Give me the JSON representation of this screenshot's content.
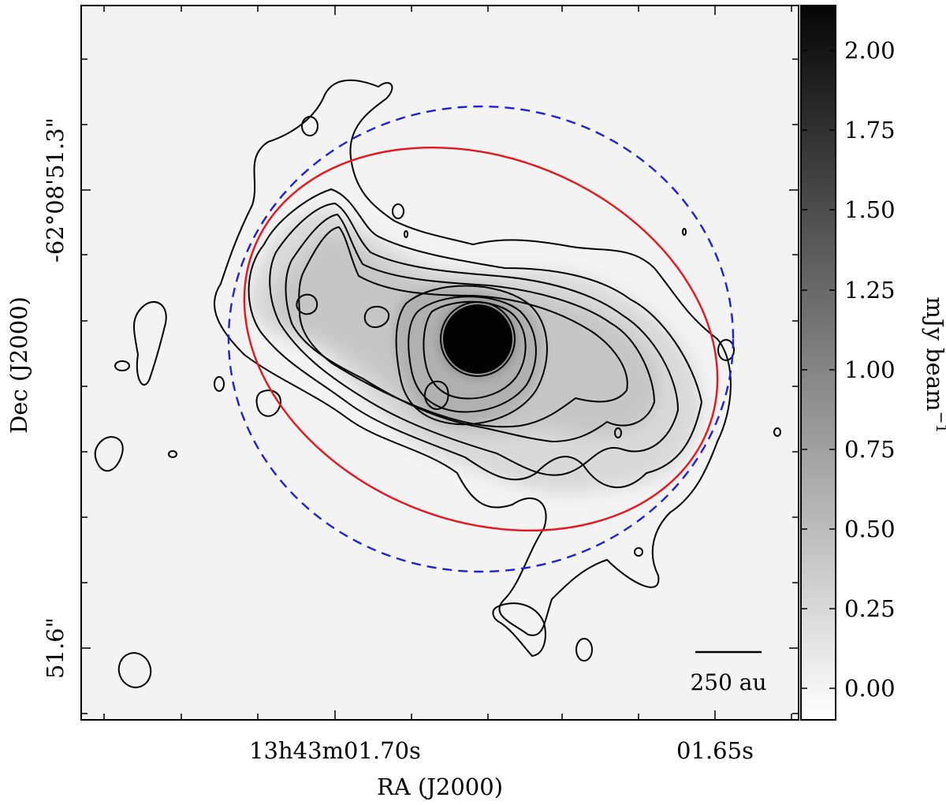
{
  "chart_data": {
    "type": "heatmap",
    "subtype": "radio continuum image with contours",
    "xlabel": "RA (J2000)",
    "ylabel": "Dec (J2000)",
    "x_tick_labels": [
      "13h43m01.70s",
      "01.65s"
    ],
    "y_tick_labels": [
      "-62°08'51.3\"",
      "51.6\""
    ],
    "colorbar": {
      "label_main": "mJy beam",
      "label_exp": "−1",
      "colormap": "grayscale (white = low, black = high)",
      "range": [
        -0.12,
        2.15
      ],
      "ticks": [
        "0.00",
        "0.25",
        "0.50",
        "0.75",
        "1.00",
        "1.25",
        "1.50",
        "1.75",
        "2.00"
      ],
      "tick_values": [
        0,
        0.25,
        0.5,
        0.75,
        1.0,
        1.25,
        1.5,
        1.75,
        2.0
      ]
    },
    "scale_bar_label": "250 au",
    "overlays": {
      "red_ellipse_color": "#e8141c",
      "blue_dashed_ellipse_color": "#1f1fd6",
      "contour_color": "#000000"
    },
    "grid": false,
    "legend": "none"
  }
}
